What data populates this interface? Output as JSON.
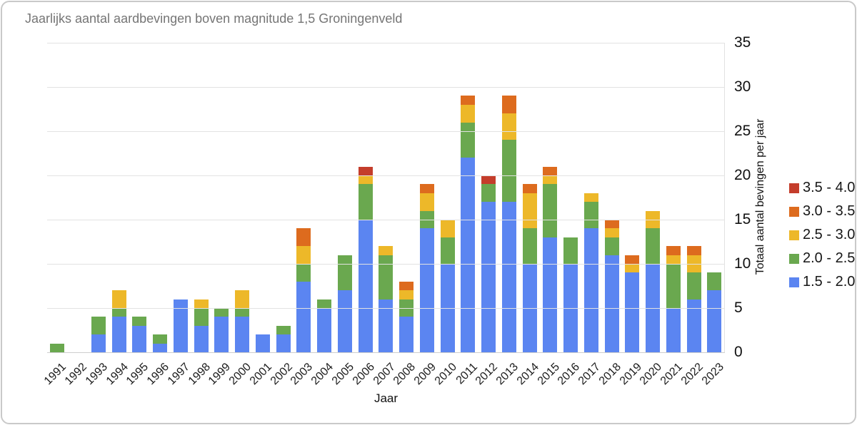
{
  "chart_data": {
    "type": "bar",
    "stacked": true,
    "title": "Jaarlijks aantal aardbevingen boven magnitude 1,5 Groningenveld",
    "xlabel": "Jaar",
    "ylabel": "Totaal aantal bevingen per jaar",
    "ylim": [
      0,
      35
    ],
    "yticks": [
      0,
      5,
      10,
      15,
      20,
      25,
      30,
      35
    ],
    "grid": true,
    "legend_position": "right",
    "legend_order_top_to_bottom": [
      "3.5 - 4.0",
      "3.0 - 3.5",
      "2.5 - 3.0",
      "2.0 - 2.5",
      "1.5 - 2.0"
    ],
    "categories": [
      "1991",
      "1992",
      "1993",
      "1994",
      "1995",
      "1996",
      "1997",
      "1998",
      "1999",
      "2000",
      "2001",
      "2002",
      "2003",
      "2004",
      "2005",
      "2006",
      "2007",
      "2008",
      "2009",
      "2010",
      "2011",
      "2012",
      "2013",
      "2014",
      "2015",
      "2016",
      "2017",
      "2018",
      "2019",
      "2020",
      "2021",
      "2022",
      "2023"
    ],
    "series": [
      {
        "name": "1.5 - 2.0",
        "color": "#5b85f1",
        "values": [
          0,
          0,
          2,
          4,
          3,
          1,
          6,
          3,
          4,
          4,
          2,
          2,
          8,
          5,
          7,
          15,
          6,
          4,
          14,
          10,
          22,
          17,
          17,
          10,
          13,
          10,
          14,
          11,
          9,
          10,
          5,
          6,
          7
        ]
      },
      {
        "name": "2.0 - 2.5",
        "color": "#6aa84f",
        "values": [
          1,
          0,
          2,
          1,
          1,
          1,
          0,
          2,
          1,
          1,
          0,
          1,
          2,
          1,
          4,
          4,
          5,
          2,
          2,
          3,
          4,
          2,
          7,
          4,
          6,
          3,
          3,
          2,
          0,
          4,
          5,
          3,
          2
        ]
      },
      {
        "name": "2.5 - 3.0",
        "color": "#edb829",
        "values": [
          0,
          0,
          0,
          2,
          0,
          0,
          0,
          1,
          0,
          2,
          0,
          0,
          2,
          0,
          0,
          1,
          1,
          1,
          2,
          2,
          2,
          0,
          3,
          4,
          1,
          0,
          1,
          1,
          1,
          2,
          1,
          2,
          0
        ]
      },
      {
        "name": "3.0 - 3.5",
        "color": "#dd6b1e",
        "values": [
          0,
          0,
          0,
          0,
          0,
          0,
          0,
          0,
          0,
          0,
          0,
          0,
          2,
          0,
          0,
          0,
          0,
          1,
          1,
          0,
          1,
          0,
          2,
          1,
          1,
          0,
          0,
          1,
          1,
          0,
          1,
          1,
          0
        ]
      },
      {
        "name": "3.5 - 4.0",
        "color": "#c43d2b",
        "values": [
          0,
          0,
          0,
          0,
          0,
          0,
          0,
          0,
          0,
          0,
          0,
          0,
          0,
          0,
          0,
          1,
          0,
          0,
          0,
          0,
          0,
          1,
          0,
          0,
          0,
          0,
          0,
          0,
          0,
          0,
          0,
          0,
          0
        ]
      }
    ],
    "totals": [
      1,
      0,
      4,
      7,
      4,
      2,
      6,
      6,
      5,
      7,
      2,
      3,
      14,
      6,
      11,
      21,
      12,
      8,
      19,
      15,
      29,
      20,
      29,
      19,
      21,
      13,
      18,
      15,
      11,
      16,
      12,
      12,
      9
    ],
    "colors": {
      "gridline": "#e2e2e2",
      "baseline": "#cdcdcd",
      "title_text": "#757575",
      "axis_text": "#111111",
      "card_border": "#c9c9c9"
    }
  }
}
